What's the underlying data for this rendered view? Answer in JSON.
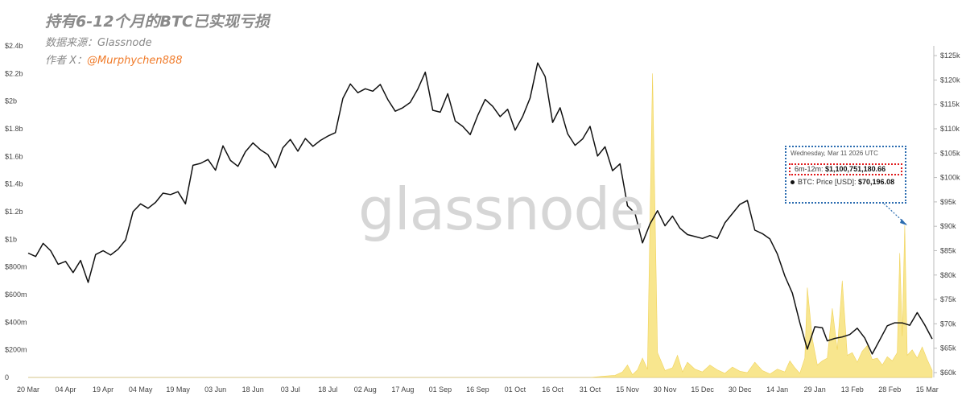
{
  "header": {
    "title": "持有6-12个月的BTC已实现亏损",
    "source": "数据来源：Glassnode",
    "author_prefix": "作者 X：",
    "author_handle": "@Murphychen888"
  },
  "watermark": "glassnode",
  "colors": {
    "price_line": "#111111",
    "loss_area": "#f7e27a",
    "tooltip_border": "#2b6cb0",
    "highlight_border": "#e0191b",
    "author": "#f07a28"
  },
  "tooltip": {
    "date": "Wednesday, Mar 11 2026 UTC",
    "loss_label": "6m-12m:",
    "loss_value": "$1,100,751,180.66",
    "price_label": "BTC: Price [USD]:",
    "price_value": "$70,196.08"
  },
  "chart_data": {
    "type": "line",
    "x_tick_labels": [
      "20 Mar",
      "04 Apr",
      "19 Apr",
      "04 May",
      "19 May",
      "03 Jun",
      "18 Jun",
      "03 Jul",
      "18 Jul",
      "02 Aug",
      "17 Aug",
      "01 Sep",
      "16 Sep",
      "01 Oct",
      "16 Oct",
      "31 Oct",
      "15 Nov",
      "30 Nov",
      "15 Dec",
      "30 Dec",
      "14 Jan",
      "29 Jan",
      "13 Feb",
      "28 Feb",
      "15 Mar"
    ],
    "y_left_ticks": [
      "0",
      "$200m",
      "$400m",
      "$600m",
      "$800m",
      "$1b",
      "$1.2b",
      "$1.4b",
      "$1.6b",
      "$1.8b",
      "$2b",
      "$2.2b",
      "$2.4b"
    ],
    "y_left_range": [
      0,
      2400000000
    ],
    "y_right_ticks": [
      "$60k",
      "$65k",
      "$70k",
      "$75k",
      "$80k",
      "$85k",
      "$90k",
      "$95k",
      "$100k",
      "$105k",
      "$110k",
      "$115k",
      "$120k",
      "$125k"
    ],
    "y_right_range": [
      59000,
      127000
    ],
    "x_range_days": [
      0,
      362
    ],
    "grid": false,
    "series": [
      {
        "name": "BTC: Price [USD]",
        "axis": "right",
        "x": [
          0,
          3,
          6,
          9,
          12,
          15,
          18,
          21,
          24,
          27,
          30,
          33,
          36,
          39,
          42,
          45,
          48,
          51,
          54,
          57,
          60,
          63,
          66,
          69,
          72,
          75,
          78,
          81,
          84,
          87,
          90,
          93,
          96,
          99,
          102,
          105,
          108,
          111,
          114,
          117,
          120,
          123,
          126,
          129,
          132,
          135,
          138,
          141,
          144,
          147,
          150,
          153,
          156,
          159,
          162,
          165,
          168,
          171,
          174,
          177,
          180,
          183,
          186,
          189,
          192,
          195,
          198,
          201,
          204,
          207,
          210,
          213,
          216,
          219,
          222,
          225,
          228,
          231,
          234,
          237,
          240,
          243,
          246,
          249,
          252,
          255,
          258,
          261,
          264,
          267,
          270,
          273,
          276,
          279,
          282,
          285,
          288,
          291,
          294,
          297,
          300,
          303,
          306,
          309,
          312,
          315,
          318,
          320,
          323,
          326,
          329,
          332,
          335,
          338,
          341,
          344,
          347,
          350,
          353,
          356,
          359,
          362
        ],
        "values": [
          84500,
          83800,
          86500,
          85000,
          82200,
          82800,
          80500,
          83000,
          78500,
          84200,
          85000,
          84100,
          85300,
          87200,
          93000,
          94600,
          93700,
          94900,
          96800,
          96500,
          97100,
          94600,
          102500,
          102900,
          103700,
          101500,
          106500,
          103500,
          102300,
          105300,
          107100,
          105700,
          104700,
          102000,
          106100,
          107800,
          105400,
          108000,
          106400,
          107600,
          108500,
          109200,
          116200,
          119200,
          117400,
          118200,
          117700,
          119100,
          116000,
          113600,
          114300,
          115400,
          118100,
          121600,
          113800,
          113400,
          117200,
          111600,
          110500,
          108800,
          112700,
          116000,
          114600,
          112500,
          114000,
          109700,
          112500,
          116300,
          123500,
          120700,
          111300,
          114300,
          109000,
          106600,
          107900,
          110500,
          104400,
          106300,
          101400,
          102800,
          94200,
          92700,
          86600,
          90500,
          93200,
          90100,
          92100,
          89600,
          88300,
          87900,
          87500,
          88100,
          87500,
          90700,
          92600,
          94500,
          95300,
          89200,
          88500,
          87400,
          84300,
          79800,
          76300,
          70200,
          64800,
          69400,
          69200,
          66500,
          67000,
          67300,
          67800,
          69100,
          67100,
          63800,
          66700,
          69600,
          70200,
          70196,
          69700,
          72300,
          69800,
          66900
        ]
      },
      {
        "name": "6m-12m",
        "axis": "left",
        "x": [
          0,
          10,
          20,
          30,
          40,
          50,
          60,
          70,
          80,
          90,
          100,
          110,
          120,
          130,
          140,
          150,
          160,
          170,
          180,
          190,
          200,
          210,
          220,
          225,
          230,
          235,
          238,
          240,
          242,
          244,
          246,
          248,
          250,
          252,
          255,
          258,
          260,
          262,
          264,
          267,
          270,
          273,
          276,
          279,
          282,
          285,
          288,
          291,
          294,
          297,
          300,
          303,
          305,
          307,
          309,
          311,
          312,
          314,
          316,
          318,
          320,
          322,
          324,
          326,
          328,
          330,
          332,
          334,
          336,
          338,
          340,
          342,
          344,
          346,
          348,
          349,
          350,
          351,
          352,
          354,
          356,
          358,
          360,
          362
        ],
        "values": [
          0,
          0,
          0,
          0,
          0,
          0,
          0,
          0,
          0,
          0,
          0,
          0,
          0,
          0,
          0,
          0,
          0,
          0,
          0,
          0,
          0,
          0,
          0,
          0,
          8000000,
          15000000,
          40000000,
          90000000,
          20000000,
          55000000,
          140000000,
          60000000,
          2200000000,
          180000000,
          50000000,
          70000000,
          160000000,
          40000000,
          110000000,
          60000000,
          40000000,
          90000000,
          55000000,
          30000000,
          75000000,
          45000000,
          35000000,
          110000000,
          50000000,
          25000000,
          60000000,
          40000000,
          120000000,
          70000000,
          30000000,
          140000000,
          650000000,
          280000000,
          90000000,
          120000000,
          140000000,
          500000000,
          200000000,
          700000000,
          160000000,
          180000000,
          110000000,
          190000000,
          230000000,
          130000000,
          140000000,
          90000000,
          150000000,
          120000000,
          180000000,
          900000000,
          300000000,
          1100751180,
          160000000,
          200000000,
          140000000,
          220000000,
          130000000,
          50000000
        ]
      }
    ]
  }
}
